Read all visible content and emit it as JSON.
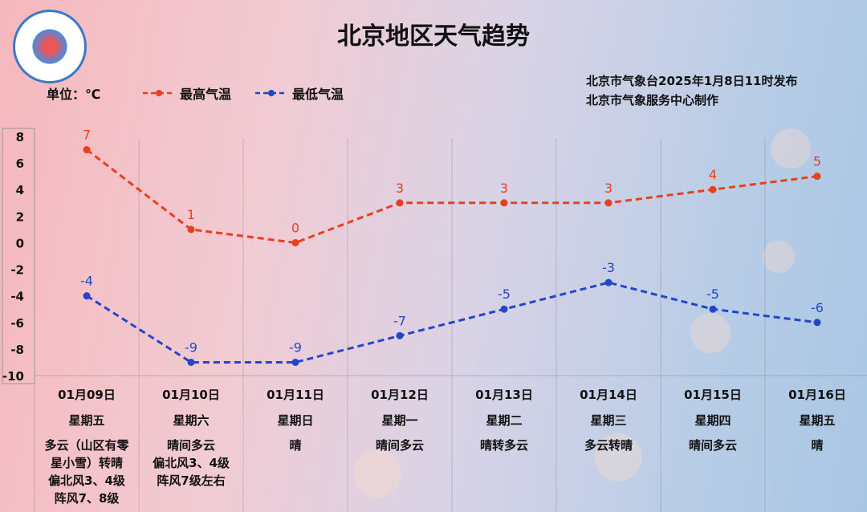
{
  "title": "北京地区天气趋势",
  "unit_label": "单位：℃",
  "issuer": [
    "北京市气象台2025年1月8日11时发布",
    "北京市气象服务中心制作"
  ],
  "colors": {
    "high": "#e8401c",
    "low": "#2346c8"
  },
  "chart_data": {
    "type": "line",
    "title": "北京地区天气趋势",
    "ylabel": "单位：℃",
    "ylim": [
      -10,
      8
    ],
    "yticks": [
      8,
      6,
      4,
      2,
      0,
      -2,
      -4,
      -6,
      -8,
      -10
    ],
    "grid": "vertical",
    "legend": "top-left",
    "categories": [
      "01月09日",
      "01月10日",
      "01月11日",
      "01月12日",
      "01月13日",
      "01月14日",
      "01月15日",
      "01月16日"
    ],
    "series": [
      {
        "name": "最高气温",
        "values": [
          7,
          1,
          0,
          3,
          3,
          3,
          4,
          5
        ]
      },
      {
        "name": "最低气温",
        "values": [
          -4,
          -9,
          -9,
          -7,
          -5,
          -3,
          -5,
          -6
        ]
      }
    ]
  },
  "days": [
    {
      "date": "01月09日",
      "weekday": "星期五",
      "desc": [
        "多云（山区有零",
        "星小雪）转晴",
        "偏北风3、4级",
        "阵风7、8级"
      ]
    },
    {
      "date": "01月10日",
      "weekday": "星期六",
      "desc": [
        "晴间多云",
        "偏北风3、4级",
        "阵风7级左右"
      ]
    },
    {
      "date": "01月11日",
      "weekday": "星期日",
      "desc": [
        "晴"
      ]
    },
    {
      "date": "01月12日",
      "weekday": "星期一",
      "desc": [
        "晴间多云"
      ]
    },
    {
      "date": "01月13日",
      "weekday": "星期二",
      "desc": [
        "晴转多云"
      ]
    },
    {
      "date": "01月14日",
      "weekday": "星期三",
      "desc": [
        "多云转晴"
      ]
    },
    {
      "date": "01月15日",
      "weekday": "星期四",
      "desc": [
        "晴间多云"
      ]
    },
    {
      "date": "01月16日",
      "weekday": "星期五",
      "desc": [
        "晴"
      ]
    }
  ]
}
